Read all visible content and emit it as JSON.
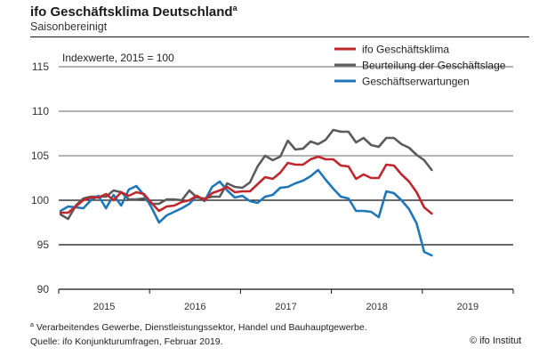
{
  "header": {
    "title": "ifo Geschäftsklima Deutschland",
    "title_superscript": "a",
    "subtitle": "Saisonbereinigt"
  },
  "footer": {
    "footnote_marker": "a",
    "footnote": "Verarbeitendes Gewerbe, Dienstleistungssektor, Handel und Bauhauptgewerbe.",
    "source": "Quelle: ifo Konjunkturumfragen, Februar 2019.",
    "copyright": "© ifo Institut"
  },
  "chart_data": {
    "type": "line",
    "title": "ifo Geschäftsklima Deutschland",
    "subtitle": "Saisonbereinigt",
    "annotation": "Indexwerte, 2015 = 100",
    "xlabel": "",
    "ylabel": "",
    "x_start": "2015-01",
    "x_end": "2019-02",
    "x_frequency": "monthly",
    "x_axis_range": [
      "2015-01",
      "2019-12"
    ],
    "x_tick_labels": [
      "2015",
      "2016",
      "2017",
      "2018",
      "2019"
    ],
    "ylim": [
      90,
      115
    ],
    "y_ticks": [
      90,
      95,
      100,
      105,
      110,
      115
    ],
    "y_tick_labels": [
      "90",
      "95",
      "100",
      "105",
      "110",
      "115"
    ],
    "grid": "horizontal",
    "legend_position": "top-right",
    "series": [
      {
        "name": "ifo Geschäftsklima",
        "color": "#c0272d",
        "values": [
          98.6,
          98.6,
          99.3,
          100.0,
          100.3,
          100.3,
          100.7,
          100.0,
          100.9,
          100.5,
          100.9,
          100.7,
          99.7,
          98.8,
          99.3,
          99.4,
          99.8,
          100.0,
          100.5,
          100.0,
          100.8,
          101.1,
          101.5,
          100.9,
          101.0,
          101.0,
          101.8,
          102.6,
          102.4,
          103.1,
          104.2,
          104.0,
          104.0,
          104.6,
          104.9,
          104.6,
          104.6,
          103.9,
          103.8,
          102.4,
          102.9,
          102.5,
          102.5,
          104.0,
          103.9,
          102.9,
          102.1,
          100.9,
          99.2,
          98.5
        ]
      },
      {
        "name": "Beurteilung der Geschäftslage",
        "color": "#5b5b5b",
        "values": [
          98.4,
          97.9,
          99.4,
          100.2,
          100.4,
          100.4,
          100.4,
          101.1,
          100.9,
          100.1,
          100.1,
          100.2,
          99.6,
          99.6,
          100.1,
          100.1,
          100.0,
          101.1,
          100.3,
          100.2,
          100.4,
          100.4,
          101.9,
          101.5,
          101.4,
          102.0,
          103.8,
          105.0,
          104.5,
          104.9,
          106.7,
          105.7,
          105.8,
          106.6,
          106.3,
          106.8,
          107.9,
          107.7,
          107.7,
          106.5,
          107.0,
          106.2,
          106.0,
          107.0,
          107.0,
          106.3,
          105.9,
          105.1,
          104.5,
          103.4
        ]
      },
      {
        "name": "Geschäftserwartungen",
        "color": "#1f77b8",
        "values": [
          98.8,
          99.3,
          99.2,
          99.1,
          100.0,
          100.5,
          99.1,
          100.6,
          99.4,
          101.2,
          101.6,
          100.6,
          99.2,
          97.5,
          98.3,
          98.7,
          99.1,
          99.6,
          100.5,
          99.9,
          101.5,
          102.1,
          101.1,
          100.3,
          100.5,
          99.9,
          99.7,
          100.4,
          100.6,
          101.4,
          101.5,
          101.9,
          102.2,
          102.7,
          103.4,
          102.3,
          101.3,
          100.4,
          100.2,
          98.8,
          98.8,
          98.7,
          98.1,
          101.0,
          100.8,
          100.0,
          99.0,
          97.4,
          94.2,
          93.8
        ]
      }
    ]
  }
}
